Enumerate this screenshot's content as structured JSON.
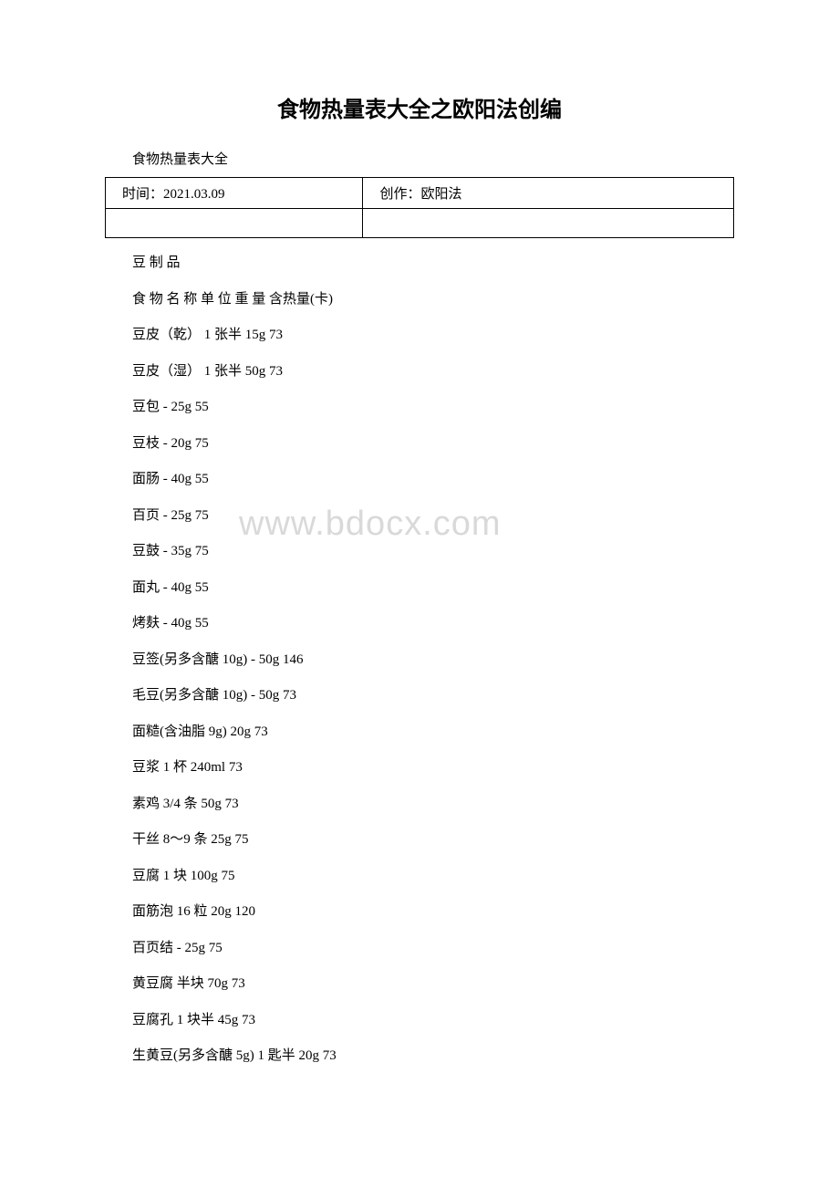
{
  "title": "食物热量表大全之欧阳法创编",
  "subtitle": "食物热量表大全",
  "table": {
    "row1": {
      "cell1": "时间：2021.03.09",
      "cell2": "创作：欧阳法"
    },
    "row2": {
      "cell1": "",
      "cell2": ""
    }
  },
  "watermark": "www.bdocx.com",
  "lines": [
    {
      "text": "豆 制 品",
      "spaced": false
    },
    {
      "text": "食 物 名 称 单 位 重 量 含热量(卡)",
      "spaced": false
    },
    {
      "text": "豆皮（乾） 1 张半 15g 73",
      "spaced": false
    },
    {
      "text": "豆皮（湿） 1 张半 50g 73",
      "spaced": false
    },
    {
      "text": "豆包 - 25g 55",
      "spaced": false
    },
    {
      "text": "豆枝 - 20g 75",
      "spaced": false
    },
    {
      "text": "面肠 - 40g 55",
      "spaced": false
    },
    {
      "text": "百页 - 25g 75",
      "spaced": false
    },
    {
      "text": "豆鼓 - 35g 75",
      "spaced": false
    },
    {
      "text": "面丸 - 40g 55",
      "spaced": false
    },
    {
      "text": "烤麸 - 40g 55",
      "spaced": false
    },
    {
      "text": "豆签(另多含醣 10g) - 50g 146",
      "spaced": false
    },
    {
      "text": "毛豆(另多含醣 10g) - 50g 73",
      "spaced": false
    },
    {
      "text": "面糙(含油脂 9g) 20g 73",
      "spaced": false
    },
    {
      "text": "豆浆 1 杯 240ml 73",
      "spaced": false
    },
    {
      "text": "素鸡 3/4 条 50g 73",
      "spaced": false
    },
    {
      "text": "干丝 8～9 条 25g 75",
      "spaced": false
    },
    {
      "text": "豆腐 1 块 100g 75",
      "spaced": false
    },
    {
      "text": "面筋泡 16 粒 20g 120",
      "spaced": false
    },
    {
      "text": "百页结 - 25g 75",
      "spaced": false
    },
    {
      "text": "黄豆腐 半块 70g 73",
      "spaced": false
    },
    {
      "text": "豆腐孔 1 块半 45g 73",
      "spaced": false
    },
    {
      "text": "生黄豆(另多含醣 5g) 1 匙半 20g 73",
      "spaced": false
    }
  ]
}
